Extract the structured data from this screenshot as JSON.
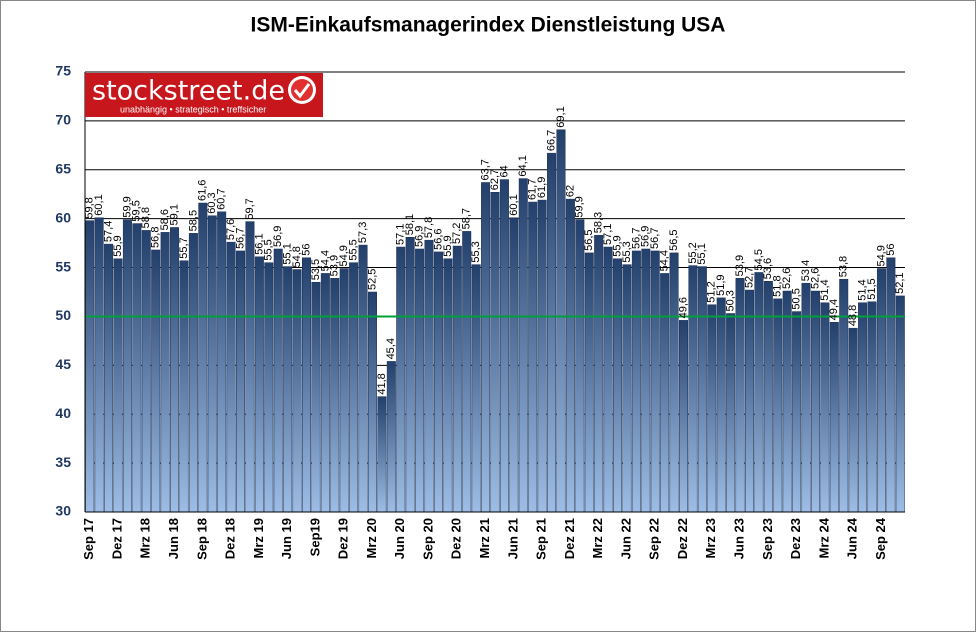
{
  "chart_data": {
    "type": "bar",
    "title": "ISM-Einkaufsmanagerindex Dienstleistung USA",
    "logo": {
      "text": "stockstreet.de",
      "tagline": "unabhängig • strategisch • treffsicher"
    },
    "categories": [
      "Sep 17",
      null,
      null,
      "Dez 17",
      null,
      null,
      "Mrz 18",
      null,
      null,
      "Jun 18",
      null,
      null,
      "Sep 18",
      null,
      null,
      "Dez 18",
      null,
      null,
      "Mrz 19",
      null,
      null,
      "Jun 19",
      null,
      null,
      "Sep19",
      null,
      null,
      "Dez 19",
      null,
      null,
      "Mrz 20",
      null,
      null,
      "Jun 20",
      null,
      null,
      "Sep 20",
      null,
      null,
      "Dez 20",
      null,
      null,
      "Mrz 21",
      null,
      null,
      "Jun 21",
      null,
      null,
      "Sep 21",
      null,
      null,
      "Dez 21",
      null,
      null,
      "Mrz 22",
      null,
      null,
      "Jun 22",
      null,
      null,
      "Sep 22",
      null,
      null,
      "Dez 22",
      null,
      null,
      "Mrz 23",
      null,
      null,
      "Jun 23",
      null,
      null,
      "Sep 23",
      null,
      null,
      "Dez 23",
      null,
      null,
      "Mrz 24",
      null,
      null,
      "Jun 24",
      null,
      null,
      "Sep 24",
      null,
      null
    ],
    "values": [
      59.8,
      60.1,
      57.4,
      55.9,
      59.9,
      59.5,
      58.8,
      56.8,
      58.6,
      59.1,
      55.7,
      58.5,
      61.6,
      60.3,
      60.7,
      57.6,
      56.7,
      59.7,
      56.1,
      55.5,
      56.9,
      55.1,
      54.8,
      56,
      53.5,
      54.4,
      53.9,
      54.9,
      55.5,
      57.3,
      52.5,
      41.8,
      45.4,
      57.1,
      58.1,
      56.9,
      57.8,
      56.6,
      55.9,
      57.2,
      58.7,
      55.3,
      63.7,
      62.7,
      64,
      60.1,
      64.1,
      61.7,
      61.9,
      66.7,
      69.1,
      62,
      59.9,
      56.5,
      58.3,
      57.1,
      55.9,
      55.3,
      56.7,
      56.9,
      56.7,
      54.4,
      56.5,
      49.6,
      55.2,
      55.1,
      51.2,
      51.9,
      50.3,
      53.9,
      52.7,
      54.5,
      53.6,
      51.8,
      52.6,
      50.5,
      53.4,
      52.6,
      51.4,
      49.4,
      53.8,
      48.8,
      51.4,
      51.5,
      54.9,
      56,
      52.1
    ],
    "value_labels": [
      "59,8",
      "60,1",
      "57,4",
      "55,9",
      "59,9",
      "59,5",
      "58,8",
      "56,8",
      "58,6",
      "59,1",
      "55,7",
      "58,5",
      "61,6",
      "60,3",
      "60,7",
      "57,6",
      "56,7",
      "59,7",
      "56,1",
      "55,5",
      "56,9",
      "55,1",
      "54,8",
      "56",
      "53,5",
      "54,4",
      "53,9",
      "54,9",
      "55,5",
      "57,3",
      "52,5",
      "41,8",
      "45,4",
      "57,1",
      "58,1",
      "56,9",
      "57,8",
      "56,6",
      "55,9",
      "57,2",
      "58,7",
      "55,3",
      "63,7",
      "62,7",
      "64",
      "60,1",
      "64,1",
      "61,7",
      "61,9",
      "66,7",
      "69,1",
      "62",
      "59,9",
      "56,5",
      "58,3",
      "57,1",
      "55,9",
      "55,3",
      "56,7",
      "56,9",
      "56,7",
      "54,4",
      "56,5",
      "49,6",
      "55,2",
      "55,1",
      "51,2",
      "51,9",
      "50,3",
      "53,9",
      "52,7",
      "54,5",
      "53,6",
      "51,8",
      "52,6",
      "50,5",
      "53,4",
      "52,6",
      "51,4",
      "49,4",
      "53,8",
      "48,8",
      "51,4",
      "51,5",
      "54,9",
      "56",
      "52,1"
    ],
    "color": "#233f6b",
    "ylim": [
      30,
      75
    ],
    "yticks": [
      30,
      35,
      40,
      45,
      50,
      55,
      60,
      65,
      70,
      75
    ],
    "grid": true,
    "reference_line": {
      "value": 50,
      "color": "#00a03c"
    }
  }
}
